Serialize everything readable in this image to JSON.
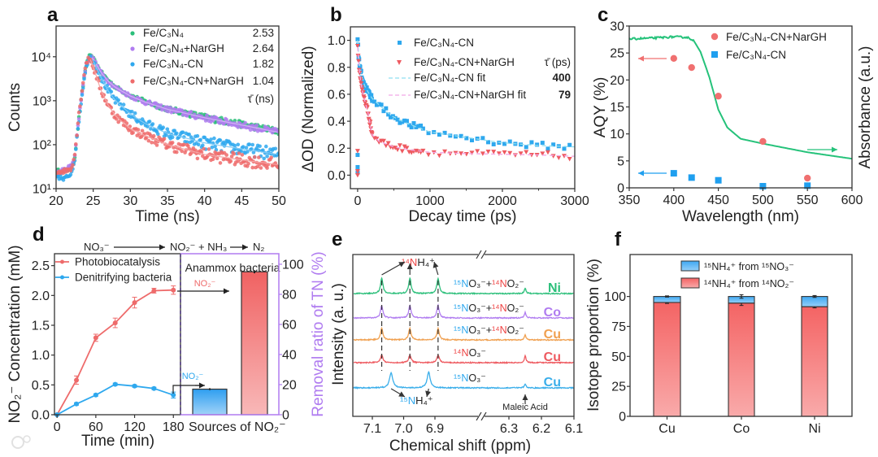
{
  "figure": {
    "panel_labels": [
      "a",
      "b",
      "c",
      "d",
      "e",
      "f"
    ],
    "watermark": "大数跨境"
  },
  "chart_data": [
    {
      "panel": "a",
      "type": "scatter",
      "xlabel": "Time (ns)",
      "ylabel": "Counts",
      "xlim": [
        20,
        50
      ],
      "ylim": [
        10,
        50000
      ],
      "yscale": "log",
      "xticks": [
        20,
        25,
        30,
        35,
        40,
        45,
        50
      ],
      "yticks": [
        10,
        100,
        1000,
        10000
      ],
      "ytick_labels": [
        "10¹",
        "10²",
        "10³",
        "10⁴"
      ],
      "legend_title": "τ̄ (ns)",
      "legend_position": "top-right",
      "x": [
        20,
        21,
        22,
        22.5,
        23,
        23.5,
        24,
        24.5,
        25,
        26,
        27,
        28,
        30,
        32,
        35,
        40,
        45,
        50
      ],
      "series": [
        {
          "name": "Fe/C₃N₄",
          "tau": "2.53",
          "color": "#2bbf7a",
          "values": [
            25,
            24,
            30,
            50,
            300,
            1500,
            6000,
            10000,
            9200,
            4600,
            2900,
            2050,
            1300,
            950,
            650,
            420,
            290,
            200
          ]
        },
        {
          "name": "Fe/C₃N₄+NarGH",
          "tau": "2.64",
          "color": "#b07cf0",
          "values": [
            22,
            26,
            32,
            55,
            320,
            1600,
            6200,
            10000,
            9000,
            4500,
            2800,
            2000,
            1280,
            930,
            640,
            410,
            280,
            190
          ]
        },
        {
          "name": "Fe/C₃N₄-CN",
          "tau": "1.82",
          "color": "#2ea8ee",
          "values": [
            20,
            16,
            22,
            45,
            280,
            1400,
            5800,
            10000,
            8000,
            3500,
            1700,
            1000,
            500,
            300,
            180,
            110,
            80,
            60
          ]
        },
        {
          "name": "Fe/C₃N₄-CN+NarGH",
          "tau": "1.04",
          "color": "#ee6b6b",
          "values": [
            24,
            25,
            28,
            55,
            400,
            1800,
            7000,
            9500,
            6000,
            1800,
            800,
            450,
            230,
            160,
            100,
            60,
            45,
            35
          ]
        }
      ]
    },
    {
      "panel": "b",
      "type": "scatter",
      "xlabel": "Decay time (ps)",
      "ylabel": "ΔOD (Normalized)",
      "xlim": [
        -100,
        3000
      ],
      "ylim": [
        -0.1,
        1.1
      ],
      "xticks": [
        0,
        1000,
        2000,
        3000
      ],
      "yticks": [
        0.0,
        0.2,
        0.4,
        0.6,
        0.8,
        1.0
      ],
      "ytick_labels": [
        "0.0",
        "0.2",
        "0.4",
        "0.6",
        "0.8",
        "1.0"
      ],
      "legend_title": "τ̄ (ps)",
      "legend_position": "top-right",
      "x": [
        0,
        20,
        50,
        100,
        150,
        200,
        300,
        400,
        500,
        700,
        1000,
        1500,
        2000,
        2500,
        3000
      ],
      "series": [
        {
          "name": "Fe/C₃N₄-CN",
          "marker": "square",
          "color": "#2ea8ee",
          "values": [
            1.0,
            0.85,
            0.75,
            0.66,
            0.61,
            0.57,
            0.52,
            0.47,
            0.43,
            0.38,
            0.32,
            0.28,
            0.24,
            0.22,
            0.21
          ],
          "near_zero_values": [
            0.02,
            0.06,
            0.15
          ]
        },
        {
          "name": "Fe/C₃N₄-CN+NarGH",
          "marker": "triangle-down",
          "color": "#ee5a60",
          "values": [
            0.95,
            0.8,
            0.66,
            0.55,
            0.45,
            0.3,
            0.25,
            0.23,
            0.21,
            0.19,
            0.17,
            0.16,
            0.155,
            0.15,
            0.14
          ],
          "near_zero_values": [
            0.0,
            0.03,
            0.18
          ]
        }
      ],
      "fits": [
        {
          "name": "Fe/C₃N₄-CN fit",
          "tau": "400",
          "color": "#8fdff0",
          "tau_color": "#2ea8ee"
        },
        {
          "name": "Fe/C₃N₄-CN+NarGH fit",
          "tau": "79",
          "color": "#f2a6e6",
          "tau_color": "#ee5a60"
        }
      ]
    },
    {
      "panel": "c",
      "type": "scatter",
      "xlabel": "Wavelength (nm)",
      "ylabel": "AQY (%)",
      "y2label": "Absorbance (a.u.)",
      "xlim": [
        350,
        600
      ],
      "ylim": [
        0,
        30
      ],
      "xticks": [
        350,
        400,
        450,
        500,
        550,
        600
      ],
      "yticks": [
        0,
        5,
        10,
        15,
        20,
        25,
        30
      ],
      "legend_position": "top-right",
      "series": [
        {
          "name": "Fe/C₃N₄-CN+NarGH",
          "marker": "circle",
          "color": "#f07070",
          "x": [
            400,
            420,
            450,
            500,
            550
          ],
          "values": [
            24,
            22.3,
            17,
            8.6,
            1.8
          ]
        },
        {
          "name": "Fe/C₃N₄-CN",
          "marker": "square",
          "color": "#1f9fef",
          "x": [
            400,
            420,
            450,
            500,
            550
          ],
          "values": [
            2.7,
            1.9,
            1.4,
            0.3,
            0.4
          ]
        }
      ],
      "absorbance_curve": {
        "color": "#25c27a",
        "x": [
          350,
          380,
          400,
          415,
          422,
          430,
          440,
          450,
          460,
          475,
          500,
          550,
          600
        ],
        "values_on_left_axis_scale": [
          27.6,
          27.8,
          28.0,
          27.9,
          27.4,
          25.2,
          20.5,
          14.5,
          11.2,
          9.1,
          8.2,
          6.6,
          5.4
        ]
      }
    },
    {
      "panel": "d",
      "type": "line",
      "scheme": {
        "reactant": "NO₃⁻",
        "intermediate": "NO₂⁻ + NH₃",
        "product": "N₂"
      },
      "xlabel": "Time (min)",
      "ylabel": "NO₂⁻ Concentration (mM)",
      "y2label": "Removal ratio of TN (%)",
      "xlim": [
        -4,
        191
      ],
      "ylim": [
        0,
        2.7
      ],
      "y2lim": [
        0,
        107
      ],
      "xticks": [
        0,
        60,
        120,
        180
      ],
      "yticks": [
        0.0,
        0.5,
        1.0,
        1.5,
        2.0,
        2.5
      ],
      "ytick_labels": [
        "0.0",
        "0.5",
        "1.0",
        "1.5",
        "2.0",
        "2.5"
      ],
      "y2ticks": [
        0,
        20,
        40,
        60,
        80,
        100
      ],
      "x": [
        0,
        30,
        60,
        90,
        120,
        150,
        180
      ],
      "series": [
        {
          "name": "Photobiocatalysis",
          "color": "#ee6b6b",
          "values": [
            0.0,
            0.58,
            1.29,
            1.54,
            1.88,
            2.08,
            2.09
          ],
          "errors": [
            0.01,
            0.07,
            0.06,
            0.08,
            0.09,
            0.04,
            0.07
          ]
        },
        {
          "name": "Denitrifying bacteria",
          "color": "#2ea8ee",
          "values": [
            0.0,
            0.18,
            0.33,
            0.51,
            0.48,
            0.44,
            0.33
          ],
          "errors": [
            0.01,
            0.02,
            0.02,
            0.02,
            0.02,
            0.02,
            0.05
          ]
        }
      ],
      "bar_panel": {
        "title": "Anammox bacteria",
        "xlabel": "Sources of NO₂⁻",
        "arrow_label": "NO₂⁻",
        "bars": [
          {
            "source": "Denitrifying bacteria",
            "value": 17,
            "error": 0.6,
            "color": "#2e9ef0"
          },
          {
            "source": "Photobiocatalysis",
            "value": 95,
            "error": 1.0,
            "color": "#f06262"
          }
        ]
      }
    },
    {
      "panel": "e",
      "type": "line",
      "xlabel": "Chemical shift (ppm)",
      "ylabel": "Intensity (a. u.)",
      "x_segments": [
        [
          7.16,
          6.75
        ],
        [
          6.385,
          6.1
        ]
      ],
      "xticks": [
        7.1,
        7.0,
        6.9,
        6.3,
        6.2,
        6.1
      ],
      "xtick_labels": [
        "7.1",
        "7.0",
        "6.9",
        "6.3",
        "6.2",
        "6.1"
      ],
      "peaks_14N_ppm": [
        7.07,
        6.98,
        6.89
      ],
      "peaks_15N_ppm": [
        7.04,
        6.92
      ],
      "maleic_acid_ppm": 6.25,
      "annotations": {
        "n14_label": [
          {
            "text": "¹⁴N",
            "color": "#ee4444"
          },
          {
            "text": "H₄⁺",
            "color": "#222"
          }
        ],
        "n15_label": [
          {
            "text": "¹⁵N",
            "color": "#2ea8ee"
          },
          {
            "text": "H₄⁺",
            "color": "#222"
          }
        ],
        "maleic": "Maleic Acid"
      },
      "traces": [
        {
          "catalyst": "Ni",
          "color": "#2bbf7a",
          "n14_height": 1.0,
          "n15_height": 0,
          "maleic_height": 0.37,
          "label": [
            {
              "text": "¹⁵N",
              "color": "#2ea8ee"
            },
            {
              "text": "O₃⁻+",
              "color": "#222"
            },
            {
              "text": "¹⁴N",
              "color": "#ee4444"
            },
            {
              "text": "O₂⁻",
              "color": "#222"
            }
          ]
        },
        {
          "catalyst": "Co",
          "color": "#b07cf0",
          "n14_height": 0.8,
          "n15_height": 0,
          "maleic_height": 0.37,
          "label": [
            {
              "text": "¹⁵N",
              "color": "#2ea8ee"
            },
            {
              "text": "O₃⁻+",
              "color": "#222"
            },
            {
              "text": "¹⁴N",
              "color": "#ee4444"
            },
            {
              "text": "O₂⁻",
              "color": "#222"
            }
          ]
        },
        {
          "catalyst": "Cu",
          "color": "#f0a050",
          "n14_height": 0.75,
          "n15_height": 0,
          "maleic_height": 0.32,
          "label": [
            {
              "text": "¹⁵N",
              "color": "#2ea8ee"
            },
            {
              "text": "O₃⁻+",
              "color": "#222"
            },
            {
              "text": "¹⁴N",
              "color": "#ee4444"
            },
            {
              "text": "O₂⁻",
              "color": "#222"
            }
          ]
        },
        {
          "catalyst": "Cu",
          "color": "#ee5a60",
          "n14_height": 0.5,
          "n15_height": 0,
          "maleic_height": 0.47,
          "label": [
            {
              "text": "¹⁴N",
              "color": "#ee4444"
            },
            {
              "text": "O₃⁻",
              "color": "#222"
            }
          ]
        },
        {
          "catalyst": "Cu",
          "color": "#3aaeea",
          "n14_height": 0,
          "n15_height": 1.0,
          "maleic_height": 0.27,
          "label": [
            {
              "text": "¹⁵N",
              "color": "#2ea8ee"
            },
            {
              "text": "O₃⁻",
              "color": "#222"
            }
          ]
        }
      ]
    },
    {
      "panel": "f",
      "type": "bar",
      "stacked": true,
      "xlabel": "",
      "ylabel": "Isotope proportion (%)",
      "ylim": [
        0,
        135
      ],
      "yticks": [
        0,
        25,
        50,
        75,
        100
      ],
      "categories": [
        "Cu",
        "Co",
        "Ni"
      ],
      "legend_position": "top-center",
      "series": [
        {
          "name": "¹⁴NH₄⁺ from ¹⁴NO₂⁻",
          "color": "#f46464",
          "values": [
            95,
            94.5,
            91.5
          ],
          "errors": [
            0.8,
            2.0,
            1.0
          ]
        },
        {
          "name": "¹⁵NH₄⁺ from ¹⁵NO₃⁻",
          "color": "#3ea8f2",
          "values": [
            5,
            5.5,
            8.5
          ],
          "errors": [
            0.5,
            1.5,
            0.8
          ]
        }
      ]
    }
  ]
}
